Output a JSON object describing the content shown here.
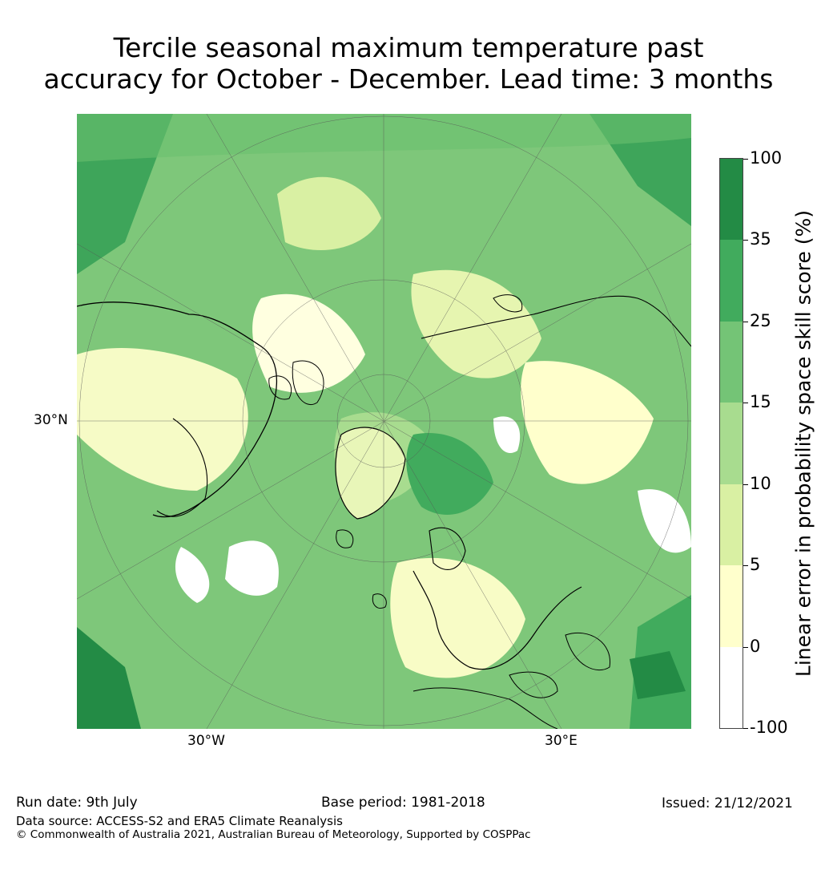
{
  "title": {
    "line1": "Tercile seasonal maximum temperature past",
    "line2": "accuracy for October - December. Lead time: 3 months"
  },
  "map": {
    "projection_label": "north-polar-stereographic",
    "grid_labels": {
      "lat_30n": "30°N",
      "lon_30w": "30°W",
      "lon_30e": "30°E"
    }
  },
  "colorbar": {
    "label": "Linear error in probability space skill score (%)",
    "ticks": [
      "100",
      "35",
      "25",
      "15",
      "10",
      "5",
      "0",
      "-100"
    ],
    "bins": [
      {
        "range": "35 to 100",
        "color": "#238b45"
      },
      {
        "range": "25 to 35",
        "color": "#41ab5d"
      },
      {
        "range": "15 to 25",
        "color": "#74c476"
      },
      {
        "range": "10 to 15",
        "color": "#a8dc8f"
      },
      {
        "range": "5 to 10",
        "color": "#d9f0a3"
      },
      {
        "range": "0 to 5",
        "color": "#ffffcc"
      },
      {
        "range": "-100 to 0",
        "color": "#ffffff"
      }
    ]
  },
  "footer": {
    "run_date": "Run date: 9th July",
    "base_period": "Base period: 1981-2018",
    "issued": "Issued: 21/12/2021",
    "data_source": "Data source: ACCESS-S2 and ERA5 Climate Reanalysis",
    "copyright": "© Commonwealth of Australia 2021, Australian Bureau of Meteorology, Supported by COSPPac"
  }
}
